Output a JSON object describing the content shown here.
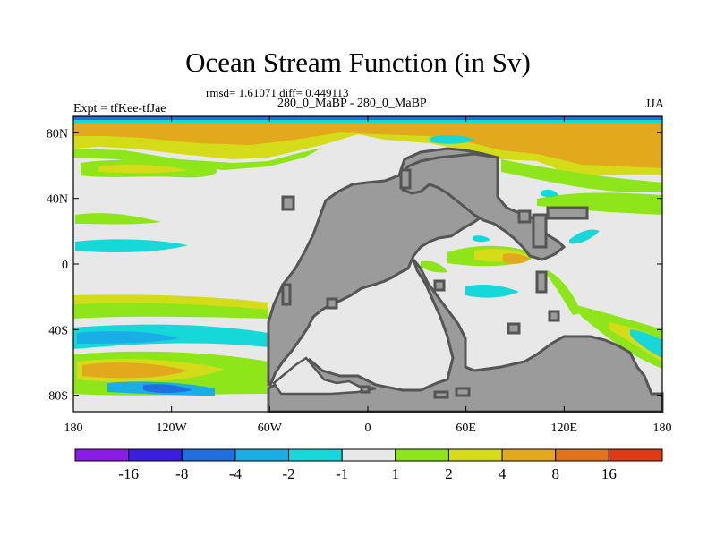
{
  "chart_data": {
    "type": "heatmap",
    "title": "Ocean Stream Function (in Sv)",
    "stats_text": "rmsd= 1.61071 diff= 0.449113",
    "subtitle": "280_0_MaBP - 280_0_MaBP",
    "left_label": "Expt = tfKee-tfJae",
    "right_label": "JJA",
    "x_ticks": [
      "180",
      "120W",
      "60W",
      "0",
      "60E",
      "120E",
      "180"
    ],
    "y_ticks": [
      "80N",
      "40N",
      "0",
      "40S",
      "80S"
    ],
    "xlim": [
      -180,
      180
    ],
    "ylim": [
      -90,
      90
    ],
    "colorbar": {
      "colors": [
        "#8b1ce8",
        "#3a1ee0",
        "#1f6fe0",
        "#1aaee6",
        "#17d8d8",
        "#e8e8e8",
        "#8ee61a",
        "#d4dc1a",
        "#e2a91c",
        "#e2731a",
        "#e03a12"
      ],
      "labels": [
        "-16",
        "-8",
        "-4",
        "-2",
        "-1",
        "1",
        "2",
        "4",
        "8",
        "16"
      ]
    },
    "contour_levels": [
      -16,
      -8,
      -4,
      -2,
      -1,
      1,
      2,
      4,
      8,
      16
    ],
    "land_color": "#9b9b9b",
    "ocean_color": "#e8e8e8"
  }
}
